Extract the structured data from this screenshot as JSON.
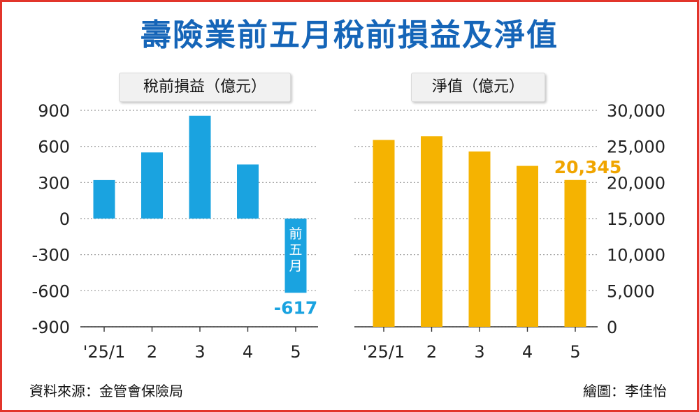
{
  "title": "壽險業前五月稅前損益及淨值",
  "chart_data": [
    {
      "type": "bar",
      "title": "稅前損益（億元）",
      "categories": [
        "'25/1",
        "2",
        "3",
        "4",
        "5"
      ],
      "values": [
        320,
        550,
        855,
        450,
        -617
      ],
      "ylim": [
        -900,
        900
      ],
      "yticks": [
        900,
        600,
        300,
        0,
        -300,
        -600,
        -900
      ],
      "bar_annotation": {
        "index": 4,
        "text": "前五月"
      },
      "data_labels": [
        {
          "index": 4,
          "text": "-617"
        }
      ],
      "color": "#1aa3e0",
      "label_color": "#1aa3e0",
      "grid": true,
      "yaxis_side": "left"
    },
    {
      "type": "bar",
      "title": "淨值（億元）",
      "categories": [
        "'25/1",
        "2",
        "3",
        "4",
        "5"
      ],
      "values": [
        25900,
        26400,
        24300,
        22300,
        20345
      ],
      "ylim": [
        0,
        30000
      ],
      "yticks": [
        "30,000",
        "25,000",
        "20,000",
        "15,000",
        "10,000",
        "5,000",
        "0"
      ],
      "data_labels": [
        {
          "index": 4,
          "text": "20,345"
        }
      ],
      "color": "#f5b301",
      "label_color": "#f0a500",
      "grid": true,
      "yaxis_side": "right"
    }
  ],
  "footer": {
    "source": "資料來源：金管會保險局",
    "credit": "繪圖：李佳怡"
  },
  "colors": {
    "frame": "#e2352b",
    "title": "#1565b8"
  }
}
